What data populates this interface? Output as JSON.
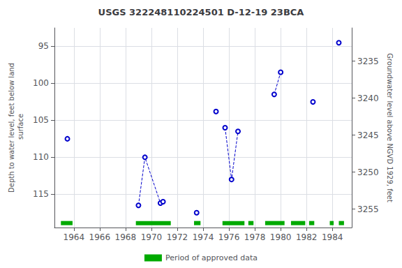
{
  "chart_data": {
    "type": "line",
    "title": "USGS 322248110224501 D-12-19 23BCA",
    "ylabel": "Depth to water level, feet below land\n surface",
    "y2label": "Groundwater level above NGVD 1929, feet",
    "xlim": [
      1962.5,
      1985.5
    ],
    "xticks": [
      1964,
      1966,
      1968,
      1970,
      1972,
      1974,
      1976,
      1978,
      1980,
      1982,
      1984
    ],
    "ylim": [
      119.5,
      92.5
    ],
    "yticks": [
      95,
      100,
      105,
      110,
      115
    ],
    "y2lim": [
      3257.5,
      3230.5
    ],
    "y2ticks": [
      3255,
      3250,
      3245,
      3240,
      3235
    ],
    "grid": true,
    "legend": "bottom",
    "series": [
      {
        "type": "line",
        "color": "#0000cc",
        "line_style": "dashed",
        "marker": "open_circle",
        "segments": [
          {
            "x": [
              1963.5
            ],
            "values": [
              107.5
            ]
          },
          {
            "x": [
              1969.0,
              1969.5,
              1970.7
            ],
            "values": [
              116.5,
              110.0,
              116.2
            ]
          },
          {
            "x": [
              1970.9
            ],
            "values": [
              116.0
            ]
          },
          {
            "x": [
              1973.5
            ],
            "values": [
              117.5
            ]
          },
          {
            "x": [
              1975.0
            ],
            "values": [
              103.8
            ]
          },
          {
            "x": [
              1975.7,
              1976.2,
              1976.7
            ],
            "values": [
              106.0,
              113.0,
              106.5
            ]
          },
          {
            "x": [
              1979.5,
              1980.0
            ],
            "values": [
              101.5,
              98.5
            ]
          },
          {
            "x": [
              1982.5
            ],
            "values": [
              102.5
            ]
          },
          {
            "x": [
              1984.5
            ],
            "values": [
              94.5
            ]
          }
        ]
      },
      {
        "name": "Period of approved data",
        "type": "bar",
        "orientation": "horizontal",
        "color": "#00aa00",
        "y": 118.9,
        "periods": [
          [
            1963.0,
            1963.9
          ],
          [
            1968.8,
            1971.5
          ],
          [
            1973.3,
            1973.8
          ],
          [
            1975.5,
            1977.2
          ],
          [
            1977.5,
            1977.9
          ],
          [
            1978.8,
            1980.3
          ],
          [
            1980.8,
            1981.9
          ],
          [
            1982.2,
            1982.6
          ],
          [
            1983.8,
            1984.1
          ],
          [
            1984.5,
            1984.9
          ]
        ]
      }
    ]
  }
}
